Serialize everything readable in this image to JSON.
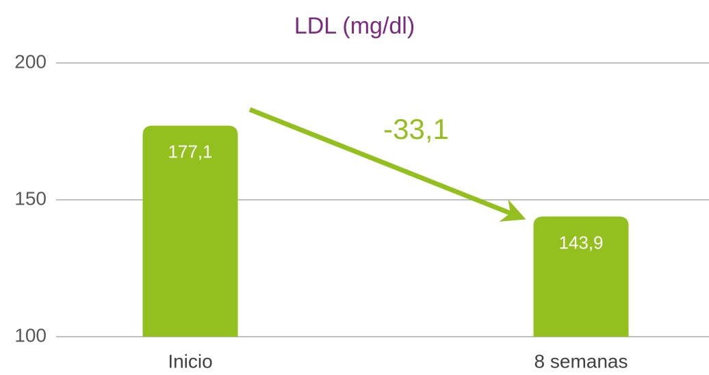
{
  "chart_data": {
    "type": "bar",
    "title": "LDL (mg/dl)",
    "categories": [
      "Inicio",
      "8 semanas"
    ],
    "values": [
      177.1,
      143.9
    ],
    "value_labels": [
      "177,1",
      "143,9"
    ],
    "color": "#93c01f",
    "annotation": "-33,1",
    "ylim": [
      100,
      200
    ],
    "yticks": [
      100,
      150,
      200
    ],
    "grid": true
  }
}
